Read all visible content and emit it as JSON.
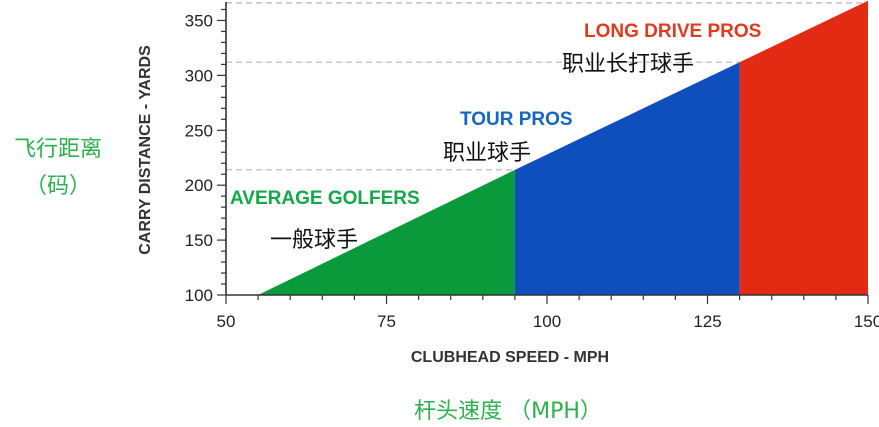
{
  "chart_data": {
    "type": "area",
    "xlabel": "CLUBHEAD SPEED - MPH",
    "ylabel": "CARRY DISTANCE - YARDS",
    "xlabel_cn": "杆头速度 （MPH）",
    "ylabel_cn_line1": "飞行距离",
    "ylabel_cn_line2": "（码）",
    "xlim": [
      50,
      150
    ],
    "ylim": [
      100,
      365
    ],
    "x_ticks": [
      50,
      75,
      100,
      125,
      150
    ],
    "y_ticks": [
      100,
      150,
      200,
      250,
      300,
      350
    ],
    "grid": "dashed horizontal reference lines at region boundaries",
    "series": [
      {
        "name": "AVERAGE GOLFERS",
        "name_cn": "一般球手",
        "color": "#0a9a3c",
        "label_color": "#12a84a",
        "x": [
          55,
          95
        ],
        "y": [
          100,
          214
        ]
      },
      {
        "name": "TOUR PROS",
        "name_cn": "职业球手",
        "color": "#0e4fbd",
        "label_color": "#1466c8",
        "x": [
          95,
          130
        ],
        "y": [
          214,
          312
        ]
      },
      {
        "name": "LONG DRIVE PROS",
        "name_cn": "职业长打球手",
        "color": "#e22b12",
        "label_color": "#e23a1c",
        "x": [
          130,
          150
        ],
        "y": [
          312,
          368
        ]
      }
    ],
    "reference_lines": [
      214,
      312,
      366
    ]
  }
}
